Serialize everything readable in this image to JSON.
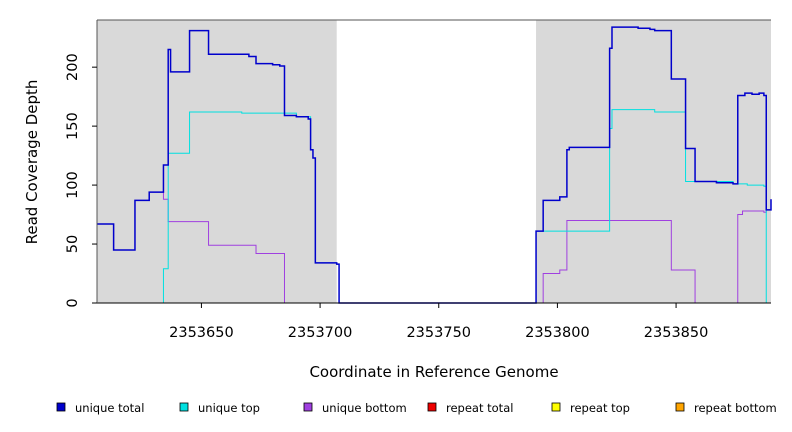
{
  "chart_data": {
    "type": "line",
    "title": "",
    "xlabel": "Coordinate in Reference Genome",
    "ylabel": "Read Coverage Depth",
    "xlim": [
      2353606,
      2353890
    ],
    "ylim": [
      0,
      240
    ],
    "xticks": [
      2353650,
      2353700,
      2353750,
      2353800,
      2353850
    ],
    "yticks": [
      0,
      50,
      100,
      150,
      200
    ],
    "shaded_regions": [
      [
        2353606,
        2353707
      ],
      [
        2353791,
        2353890
      ]
    ],
    "grid": false,
    "legend_position": "bottom",
    "series": [
      {
        "name": "unique total",
        "color": "#0000cc",
        "steps": [
          [
            2353606,
            67
          ],
          [
            2353613,
            45
          ],
          [
            2353622,
            87
          ],
          [
            2353628,
            94
          ],
          [
            2353634,
            117
          ],
          [
            2353636,
            215
          ],
          [
            2353637,
            196
          ],
          [
            2353645,
            231
          ],
          [
            2353653,
            211
          ],
          [
            2353670,
            209
          ],
          [
            2353673,
            203
          ],
          [
            2353680,
            202
          ],
          [
            2353683,
            201
          ],
          [
            2353685,
            159
          ],
          [
            2353690,
            158
          ],
          [
            2353695,
            156
          ],
          [
            2353696,
            130
          ],
          [
            2353697,
            123
          ],
          [
            2353698,
            34
          ],
          [
            2353707,
            33
          ],
          [
            2353708,
            0
          ],
          [
            2353791,
            61
          ],
          [
            2353794,
            87
          ],
          [
            2353801,
            90
          ],
          [
            2353804,
            130
          ],
          [
            2353805,
            132
          ],
          [
            2353822,
            216
          ],
          [
            2353823,
            234
          ],
          [
            2353834,
            233
          ],
          [
            2353839,
            232
          ],
          [
            2353841,
            231
          ],
          [
            2353848,
            190
          ],
          [
            2353854,
            131
          ],
          [
            2353858,
            103
          ],
          [
            2353867,
            102
          ],
          [
            2353874,
            101
          ],
          [
            2353876,
            176
          ],
          [
            2353879,
            178
          ],
          [
            2353882,
            177
          ],
          [
            2353885,
            178
          ],
          [
            2353887,
            176
          ],
          [
            2353888,
            79
          ],
          [
            2353890,
            88
          ]
        ]
      },
      {
        "name": "unique top",
        "color": "#00e0e0",
        "steps": [
          [
            2353606,
            0
          ],
          [
            2353634,
            29
          ],
          [
            2353636,
            127
          ],
          [
            2353645,
            162
          ],
          [
            2353667,
            161
          ],
          [
            2353690,
            158
          ],
          [
            2353696,
            130
          ],
          [
            2353697,
            123
          ],
          [
            2353698,
            34
          ],
          [
            2353707,
            33
          ],
          [
            2353708,
            0
          ],
          [
            2353791,
            61
          ],
          [
            2353822,
            148
          ],
          [
            2353823,
            164
          ],
          [
            2353841,
            162
          ],
          [
            2353854,
            103
          ],
          [
            2353874,
            101
          ],
          [
            2353880,
            100
          ],
          [
            2353887,
            99
          ],
          [
            2353888,
            0
          ],
          [
            2353890,
            0
          ]
        ]
      },
      {
        "name": "unique bottom",
        "color": "#a040e0",
        "steps": [
          [
            2353606,
            67
          ],
          [
            2353613,
            45
          ],
          [
            2353622,
            87
          ],
          [
            2353628,
            94
          ],
          [
            2353634,
            88
          ],
          [
            2353636,
            69
          ],
          [
            2353653,
            49
          ],
          [
            2353673,
            42
          ],
          [
            2353685,
            0
          ],
          [
            2353794,
            25
          ],
          [
            2353801,
            28
          ],
          [
            2353804,
            70
          ],
          [
            2353848,
            28
          ],
          [
            2353858,
            0
          ],
          [
            2353876,
            75
          ],
          [
            2353878,
            78
          ],
          [
            2353887,
            77
          ],
          [
            2353888,
            79
          ],
          [
            2353890,
            88
          ]
        ]
      },
      {
        "name": "repeat total",
        "color": "#ee0000",
        "steps": [
          [
            2353606,
            0
          ],
          [
            2353890,
            0
          ]
        ]
      },
      {
        "name": "repeat top",
        "color": "#ffff00",
        "steps": [
          [
            2353606,
            0
          ],
          [
            2353890,
            0
          ]
        ]
      },
      {
        "name": "repeat bottom",
        "color": "#ffa500",
        "steps": [
          [
            2353606,
            0
          ],
          [
            2353890,
            0
          ]
        ]
      }
    ]
  }
}
